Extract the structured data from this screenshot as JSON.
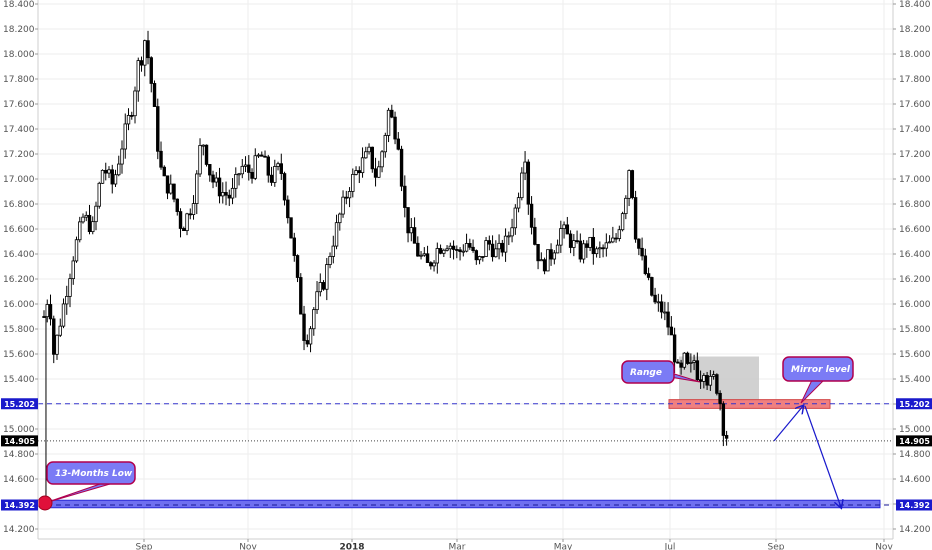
{
  "chart_data": {
    "type": "candlestick",
    "y_ticks": [
      "14.200",
      "14.400",
      "14.600",
      "14.800",
      "15.000",
      "15.200",
      "15.400",
      "15.600",
      "15.800",
      "16.000",
      "16.200",
      "16.400",
      "16.600",
      "16.800",
      "17.000",
      "17.200",
      "17.400",
      "17.600",
      "17.800",
      "18.000",
      "18.200",
      "18.400"
    ],
    "ylim": [
      14.2,
      18.4
    ],
    "x_ticks": [
      {
        "label": "Sep",
        "bold": false
      },
      {
        "label": "Nov",
        "bold": false
      },
      {
        "label": "2018",
        "bold": true
      },
      {
        "label": "Mar",
        "bold": false
      },
      {
        "label": "May",
        "bold": false
      },
      {
        "label": "Jul",
        "bold": false
      },
      {
        "label": "Sep",
        "bold": false
      },
      {
        "label": "Nov",
        "bold": false
      }
    ],
    "price_path": [
      [
        0,
        15.9
      ],
      [
        5,
        16.1
      ],
      [
        10,
        15.6
      ],
      [
        20,
        16.0
      ],
      [
        30,
        16.4
      ],
      [
        40,
        16.7
      ],
      [
        50,
        16.6
      ],
      [
        55,
        16.9
      ],
      [
        60,
        17.1
      ],
      [
        70,
        16.95
      ],
      [
        80,
        17.3
      ],
      [
        90,
        17.6
      ],
      [
        95,
        17.9
      ],
      [
        100,
        18.0
      ],
      [
        103,
        18.15
      ],
      [
        106,
        17.95
      ],
      [
        110,
        17.7
      ],
      [
        115,
        17.3
      ],
      [
        120,
        17.0
      ],
      [
        130,
        16.9
      ],
      [
        140,
        16.6
      ],
      [
        150,
        16.8
      ],
      [
        155,
        17.0
      ],
      [
        160,
        17.35
      ],
      [
        170,
        17.0
      ],
      [
        180,
        16.9
      ],
      [
        190,
        16.85
      ],
      [
        200,
        17.1
      ],
      [
        210,
        17.05
      ],
      [
        220,
        17.2
      ],
      [
        230,
        17.0
      ],
      [
        240,
        17.1
      ],
      [
        250,
        16.6
      ],
      [
        255,
        16.3
      ],
      [
        260,
        16.0
      ],
      [
        265,
        15.7
      ],
      [
        270,
        15.8
      ],
      [
        275,
        16.0
      ],
      [
        285,
        16.2
      ],
      [
        290,
        16.4
      ],
      [
        300,
        16.7
      ],
      [
        310,
        16.95
      ],
      [
        320,
        17.1
      ],
      [
        330,
        17.2
      ],
      [
        338,
        17.0
      ],
      [
        345,
        17.3
      ],
      [
        350,
        17.55
      ],
      [
        360,
        17.3
      ],
      [
        365,
        16.8
      ],
      [
        370,
        16.6
      ],
      [
        380,
        16.4
      ],
      [
        390,
        16.3
      ],
      [
        400,
        16.45
      ],
      [
        410,
        16.5
      ],
      [
        420,
        16.4
      ],
      [
        430,
        16.5
      ],
      [
        440,
        16.3
      ],
      [
        450,
        16.5
      ],
      [
        460,
        16.4
      ],
      [
        470,
        16.5
      ],
      [
        480,
        16.8
      ],
      [
        485,
        17.1
      ],
      [
        488,
        17.25
      ],
      [
        492,
        16.8
      ],
      [
        498,
        16.5
      ],
      [
        505,
        16.3
      ],
      [
        515,
        16.4
      ],
      [
        525,
        16.6
      ],
      [
        535,
        16.5
      ],
      [
        545,
        16.4
      ],
      [
        552,
        16.5
      ],
      [
        560,
        16.4
      ],
      [
        570,
        16.45
      ],
      [
        580,
        16.5
      ],
      [
        590,
        16.85
      ],
      [
        595,
        17.15
      ],
      [
        600,
        16.6
      ],
      [
        605,
        16.4
      ],
      [
        612,
        16.2
      ],
      [
        620,
        16.0
      ],
      [
        628,
        15.95
      ],
      [
        635,
        15.8
      ],
      [
        640,
        15.6
      ],
      [
        645,
        15.4
      ],
      [
        650,
        15.55
      ],
      [
        655,
        15.45
      ],
      [
        660,
        15.55
      ],
      [
        665,
        15.4
      ],
      [
        670,
        15.5
      ],
      [
        675,
        15.35
      ],
      [
        680,
        15.4
      ],
      [
        685,
        15.3
      ],
      [
        690,
        15.0
      ],
      [
        695,
        14.91
      ]
    ],
    "levels": {
      "mirror": {
        "value": 15.202,
        "label": "15.202"
      },
      "current": {
        "value": 14.905,
        "label": "14.905"
      },
      "low": {
        "value": 14.392,
        "label": "14.392"
      }
    },
    "range_box": {
      "price_top": 15.58,
      "price_bottom": 15.22
    },
    "mirror_zone": {
      "price_top": 15.235,
      "price_bottom": 15.165
    },
    "low_zone": {
      "price_top": 14.43,
      "price_bottom": 14.37
    },
    "projection": [
      [
        733,
        14.905
      ],
      [
        765,
        15.2
      ],
      [
        795,
        14.39
      ]
    ],
    "annotations": {
      "range_label": "Range",
      "mirror_label": "Mirror level",
      "low_label": "13-Months Low"
    },
    "colors": {
      "candle": "#000000",
      "grid": "#eeeeee",
      "mirror_line": "#3333cc",
      "badge_blue": "#1a1acc",
      "badge_black": "#000000",
      "callout": "#7b7bf5",
      "callout_border": "#b0004e",
      "zone_red": "#f08080",
      "zone_blue": "#6f6ff0",
      "range_box": "#c9c9c9",
      "arrow": "#1a1acc"
    }
  }
}
